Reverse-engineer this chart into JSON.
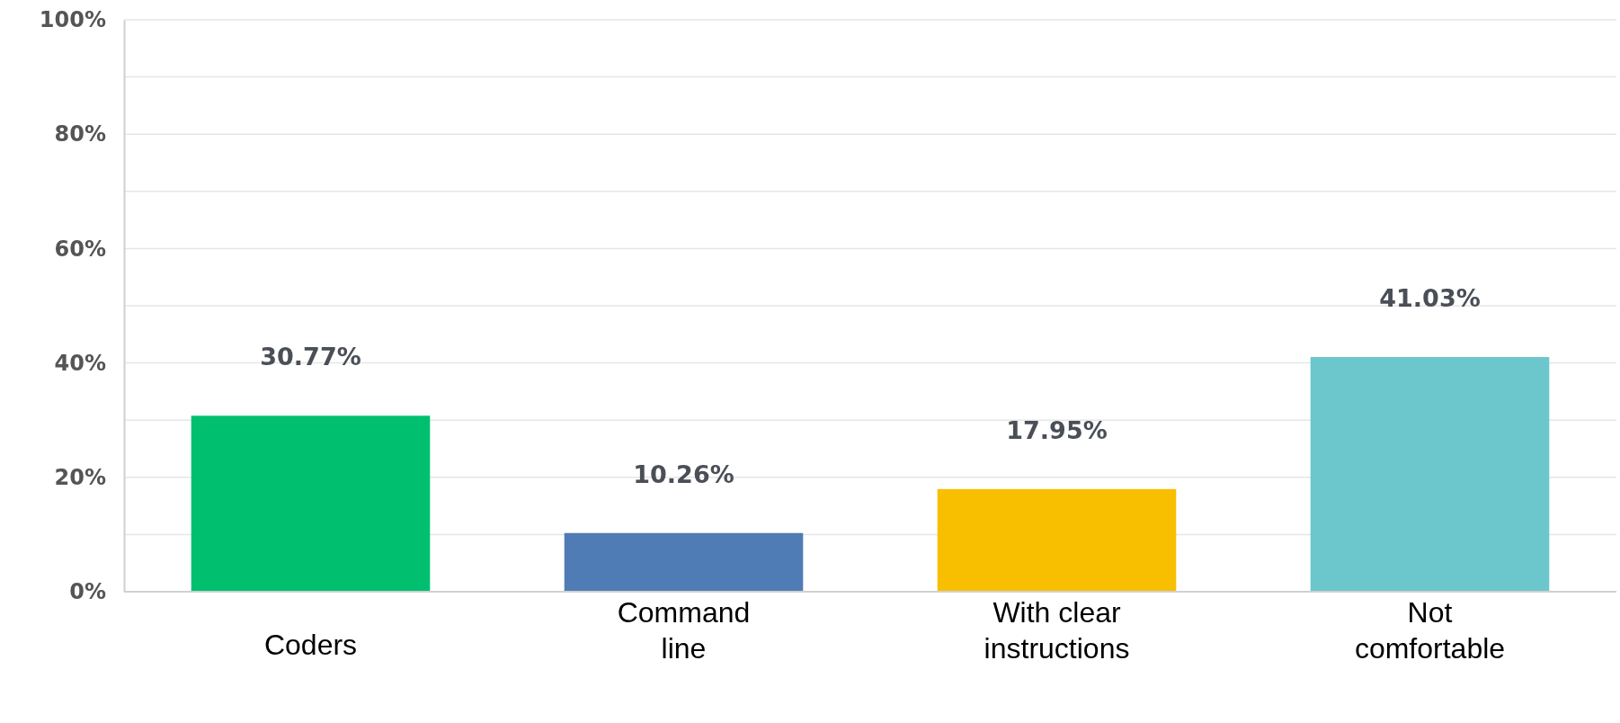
{
  "chart_data": {
    "type": "bar",
    "categories": [
      "Coders",
      "Command line",
      "With clear instructions",
      "Not comfortable"
    ],
    "values": [
      30.77,
      10.26,
      17.95,
      41.03
    ],
    "colors": [
      "#00bf6f",
      "#507cb6",
      "#f7bf00",
      "#6bc7cc"
    ],
    "value_labels": [
      "30.77%",
      "10.26%",
      "17.95%",
      "41.03%"
    ],
    "ylim": [
      0,
      100
    ],
    "yticks": [
      {
        "value": 0,
        "label": "0%"
      },
      {
        "value": 10,
        "label": null
      },
      {
        "value": 20,
        "label": "20%"
      },
      {
        "value": 30,
        "label": null
      },
      {
        "value": 40,
        "label": "40%"
      },
      {
        "value": 50,
        "label": null
      },
      {
        "value": 60,
        "label": "60%"
      },
      {
        "value": 70,
        "label": null
      },
      {
        "value": 80,
        "label": "80%"
      },
      {
        "value": 90,
        "label": null
      },
      {
        "value": 100,
        "label": "100%"
      }
    ],
    "grid": "y"
  }
}
